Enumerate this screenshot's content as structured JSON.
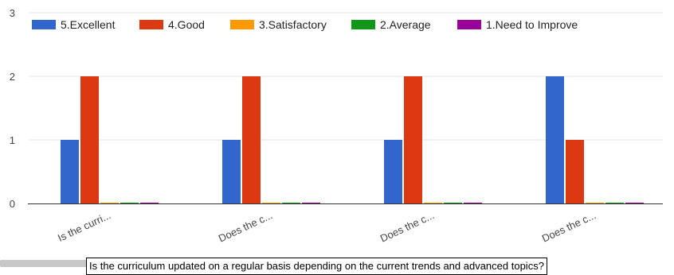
{
  "chart_data": {
    "type": "bar",
    "categories": [
      "Is the curri...",
      "Does the c...",
      "Does the c...",
      "Does the c..."
    ],
    "series": [
      {
        "name": "5.Excellent",
        "color": "#3366cc",
        "values": [
          1,
          1,
          1,
          2
        ]
      },
      {
        "name": "4.Good",
        "color": "#dc3912",
        "values": [
          2,
          2,
          2,
          1
        ]
      },
      {
        "name": "3.Satisfactory",
        "color": "#ff9900",
        "values": [
          0,
          0,
          0,
          0
        ]
      },
      {
        "name": "2.Average",
        "color": "#109618",
        "values": [
          0,
          0,
          0,
          0
        ]
      },
      {
        "name": "1.Need to Improve",
        "color": "#990099",
        "values": [
          0,
          0,
          0,
          0
        ]
      }
    ],
    "ylim": [
      0,
      3
    ],
    "yticks": [
      "0",
      "1",
      "2",
      "3"
    ],
    "grid": true,
    "legend_position": "top"
  },
  "tooltip": {
    "text": "Is the curriculum updated on a regular basis depending on the current trends and advanced topics?"
  }
}
